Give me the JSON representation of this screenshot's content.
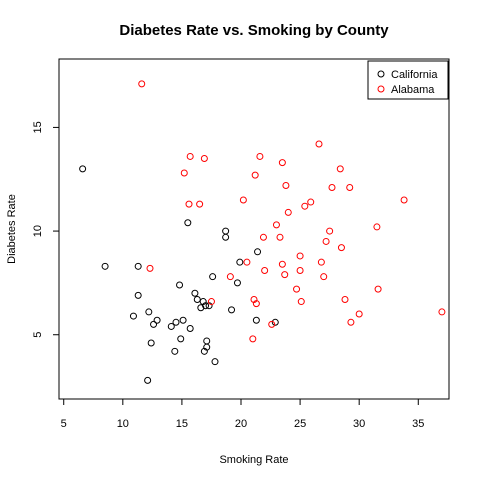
{
  "chart_data": {
    "type": "scatter",
    "title": "Diabetes Rate vs. Smoking by County",
    "xlabel": "Smoking Rate",
    "ylabel": "Diabetes Rate",
    "xlim": [
      4.6,
      37.6
    ],
    "ylim": [
      1.9,
      18.3
    ],
    "xticks": [
      5,
      10,
      15,
      20,
      25,
      30,
      35
    ],
    "yticks": [
      5,
      10,
      15
    ],
    "grid": false,
    "legend_position": "top-right",
    "series": [
      {
        "name": "California",
        "color": "#000000",
        "points": [
          [
            6.6,
            13.0
          ],
          [
            8.5,
            8.3
          ],
          [
            11.3,
            8.3
          ],
          [
            11.3,
            6.9
          ],
          [
            10.9,
            5.9
          ],
          [
            12.2,
            6.1
          ],
          [
            12.4,
            4.6
          ],
          [
            12.6,
            5.5
          ],
          [
            12.9,
            5.7
          ],
          [
            12.1,
            2.8
          ],
          [
            14.1,
            5.4
          ],
          [
            14.4,
            4.2
          ],
          [
            14.5,
            5.6
          ],
          [
            14.8,
            7.4
          ],
          [
            14.9,
            4.8
          ],
          [
            15.1,
            5.7
          ],
          [
            15.5,
            10.4
          ],
          [
            15.7,
            5.3
          ],
          [
            16.1,
            7.0
          ],
          [
            16.3,
            6.7
          ],
          [
            16.6,
            6.3
          ],
          [
            16.8,
            6.6
          ],
          [
            16.9,
            4.2
          ],
          [
            17.0,
            6.4
          ],
          [
            17.1,
            4.4
          ],
          [
            17.1,
            4.7
          ],
          [
            17.3,
            6.4
          ],
          [
            17.6,
            7.8
          ],
          [
            17.8,
            3.7
          ],
          [
            18.7,
            9.7
          ],
          [
            18.7,
            10.0
          ],
          [
            19.2,
            6.2
          ],
          [
            19.7,
            7.5
          ],
          [
            19.9,
            8.5
          ],
          [
            21.3,
            5.7
          ],
          [
            21.4,
            9.0
          ],
          [
            22.9,
            5.6
          ]
        ]
      },
      {
        "name": "Alabama",
        "color": "#ff0000",
        "points": [
          [
            11.6,
            17.1
          ],
          [
            12.3,
            8.2
          ],
          [
            15.2,
            12.8
          ],
          [
            15.6,
            11.3
          ],
          [
            15.7,
            13.6
          ],
          [
            16.5,
            11.3
          ],
          [
            16.9,
            13.5
          ],
          [
            17.5,
            6.6
          ],
          [
            19.1,
            7.8
          ],
          [
            20.2,
            11.5
          ],
          [
            20.5,
            8.5
          ],
          [
            21.0,
            4.8
          ],
          [
            21.1,
            6.7
          ],
          [
            21.2,
            12.7
          ],
          [
            21.3,
            6.5
          ],
          [
            21.6,
            13.6
          ],
          [
            21.9,
            9.7
          ],
          [
            22.0,
            8.1
          ],
          [
            22.6,
            5.5
          ],
          [
            23.0,
            10.3
          ],
          [
            23.3,
            9.7
          ],
          [
            23.5,
            13.3
          ],
          [
            23.5,
            8.4
          ],
          [
            23.7,
            7.9
          ],
          [
            23.8,
            12.2
          ],
          [
            24.0,
            10.9
          ],
          [
            24.7,
            7.2
          ],
          [
            25.0,
            8.1
          ],
          [
            25.0,
            8.8
          ],
          [
            25.1,
            6.6
          ],
          [
            25.4,
            11.2
          ],
          [
            25.9,
            11.4
          ],
          [
            26.6,
            14.2
          ],
          [
            26.8,
            8.5
          ],
          [
            27.0,
            7.8
          ],
          [
            27.2,
            9.5
          ],
          [
            27.5,
            10.0
          ],
          [
            27.7,
            12.1
          ],
          [
            28.4,
            13.0
          ],
          [
            28.5,
            9.2
          ],
          [
            28.8,
            6.7
          ],
          [
            29.2,
            12.1
          ],
          [
            29.3,
            5.6
          ],
          [
            30.0,
            6.0
          ],
          [
            31.5,
            10.2
          ],
          [
            31.6,
            7.2
          ],
          [
            33.8,
            11.5
          ],
          [
            37.0,
            6.1
          ]
        ]
      }
    ]
  }
}
